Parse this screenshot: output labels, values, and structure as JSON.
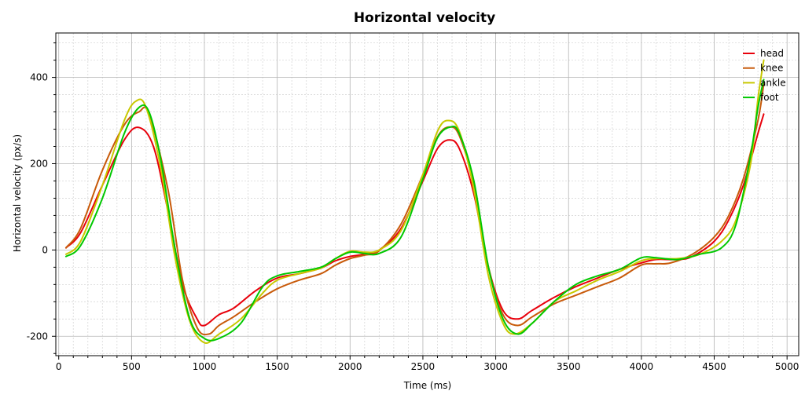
{
  "chart_data": {
    "type": "line",
    "title": "Horizontal velocity",
    "xlabel": "Time (ms)",
    "ylabel": "Horizontal velocity (px/s)",
    "xlim": [
      -20,
      5080
    ],
    "ylim": [
      -245,
      503
    ],
    "x_ticks": [
      0,
      500,
      1000,
      1500,
      2000,
      2500,
      3000,
      3500,
      4000,
      4500,
      5000
    ],
    "x_tick_labels": [
      "0",
      "500",
      "1000",
      "1500",
      "2000",
      "2500",
      "3000",
      "3500",
      "4000",
      "4500",
      "5000"
    ],
    "y_ticks": [
      -200,
      0,
      200,
      400
    ],
    "y_tick_labels": [
      "-200",
      "0",
      "200",
      "400"
    ],
    "grid": true,
    "legend_position": "top-right",
    "series": [
      {
        "name": "head",
        "color": "#e8000b",
        "points": [
          [
            50,
            5
          ],
          [
            150,
            40
          ],
          [
            300,
            150
          ],
          [
            450,
            255
          ],
          [
            550,
            284
          ],
          [
            650,
            240
          ],
          [
            750,
            90
          ],
          [
            850,
            -80
          ],
          [
            950,
            -160
          ],
          [
            1000,
            -175
          ],
          [
            1100,
            -150
          ],
          [
            1200,
            -135
          ],
          [
            1350,
            -95
          ],
          [
            1500,
            -65
          ],
          [
            1650,
            -55
          ],
          [
            1800,
            -42
          ],
          [
            1900,
            -25
          ],
          [
            2000,
            -15
          ],
          [
            2100,
            -10
          ],
          [
            2200,
            0
          ],
          [
            2350,
            50
          ],
          [
            2500,
            160
          ],
          [
            2600,
            235
          ],
          [
            2680,
            255
          ],
          [
            2750,
            235
          ],
          [
            2850,
            130
          ],
          [
            2950,
            -40
          ],
          [
            3050,
            -140
          ],
          [
            3150,
            -160
          ],
          [
            3250,
            -140
          ],
          [
            3400,
            -110
          ],
          [
            3550,
            -85
          ],
          [
            3700,
            -65
          ],
          [
            3850,
            -45
          ],
          [
            4000,
            -30
          ],
          [
            4100,
            -22
          ],
          [
            4250,
            -22
          ],
          [
            4350,
            -15
          ],
          [
            4500,
            20
          ],
          [
            4600,
            70
          ],
          [
            4700,
            150
          ],
          [
            4800,
            270
          ],
          [
            4840,
            315
          ]
        ]
      },
      {
        "name": "knee",
        "color": "#c85a0a",
        "points": [
          [
            50,
            5
          ],
          [
            150,
            50
          ],
          [
            300,
            185
          ],
          [
            450,
            290
          ],
          [
            550,
            320
          ],
          [
            620,
            315
          ],
          [
            750,
            140
          ],
          [
            850,
            -70
          ],
          [
            950,
            -180
          ],
          [
            1030,
            -195
          ],
          [
            1100,
            -175
          ],
          [
            1200,
            -155
          ],
          [
            1350,
            -120
          ],
          [
            1500,
            -90
          ],
          [
            1650,
            -70
          ],
          [
            1800,
            -55
          ],
          [
            1900,
            -35
          ],
          [
            2000,
            -20
          ],
          [
            2100,
            -12
          ],
          [
            2200,
            -2
          ],
          [
            2350,
            60
          ],
          [
            2500,
            175
          ],
          [
            2600,
            262
          ],
          [
            2680,
            285
          ],
          [
            2750,
            265
          ],
          [
            2850,
            150
          ],
          [
            2950,
            -40
          ],
          [
            3050,
            -150
          ],
          [
            3150,
            -175
          ],
          [
            3250,
            -155
          ],
          [
            3400,
            -125
          ],
          [
            3550,
            -105
          ],
          [
            3700,
            -85
          ],
          [
            3850,
            -65
          ],
          [
            4000,
            -35
          ],
          [
            4100,
            -32
          ],
          [
            4200,
            -30
          ],
          [
            4350,
            -10
          ],
          [
            4500,
            30
          ],
          [
            4600,
            80
          ],
          [
            4700,
            165
          ],
          [
            4800,
            300
          ],
          [
            4840,
            385
          ]
        ]
      },
      {
        "name": "ankle",
        "color": "#c8c800",
        "points": [
          [
            50,
            -10
          ],
          [
            150,
            20
          ],
          [
            300,
            150
          ],
          [
            450,
            300
          ],
          [
            530,
            345
          ],
          [
            600,
            330
          ],
          [
            700,
            190
          ],
          [
            800,
            -20
          ],
          [
            900,
            -165
          ],
          [
            1000,
            -215
          ],
          [
            1100,
            -195
          ],
          [
            1250,
            -160
          ],
          [
            1400,
            -100
          ],
          [
            1500,
            -70
          ],
          [
            1650,
            -55
          ],
          [
            1800,
            -42
          ],
          [
            1900,
            -20
          ],
          [
            2000,
            -3
          ],
          [
            2100,
            -5
          ],
          [
            2200,
            0
          ],
          [
            2350,
            45
          ],
          [
            2500,
            175
          ],
          [
            2600,
            275
          ],
          [
            2670,
            300
          ],
          [
            2750,
            275
          ],
          [
            2850,
            140
          ],
          [
            2950,
            -60
          ],
          [
            3050,
            -170
          ],
          [
            3130,
            -195
          ],
          [
            3250,
            -170
          ],
          [
            3400,
            -120
          ],
          [
            3550,
            -95
          ],
          [
            3700,
            -70
          ],
          [
            3850,
            -50
          ],
          [
            4000,
            -25
          ],
          [
            4100,
            -20
          ],
          [
            4250,
            -20
          ],
          [
            4400,
            -10
          ],
          [
            4550,
            20
          ],
          [
            4650,
            70
          ],
          [
            4750,
            200
          ],
          [
            4800,
            350
          ],
          [
            4840,
            440
          ]
        ]
      },
      {
        "name": "foot",
        "color": "#00c800",
        "points": [
          [
            50,
            -15
          ],
          [
            150,
            10
          ],
          [
            300,
            120
          ],
          [
            450,
            270
          ],
          [
            550,
            330
          ],
          [
            620,
            320
          ],
          [
            700,
            210
          ],
          [
            800,
            0
          ],
          [
            900,
            -160
          ],
          [
            1000,
            -205
          ],
          [
            1100,
            -205
          ],
          [
            1250,
            -170
          ],
          [
            1400,
            -85
          ],
          [
            1500,
            -60
          ],
          [
            1650,
            -50
          ],
          [
            1800,
            -40
          ],
          [
            1900,
            -20
          ],
          [
            2000,
            -5
          ],
          [
            2100,
            -8
          ],
          [
            2200,
            -8
          ],
          [
            2350,
            30
          ],
          [
            2500,
            165
          ],
          [
            2600,
            260
          ],
          [
            2690,
            285
          ],
          [
            2750,
            270
          ],
          [
            2850,
            160
          ],
          [
            2950,
            -40
          ],
          [
            3050,
            -160
          ],
          [
            3150,
            -195
          ],
          [
            3250,
            -170
          ],
          [
            3400,
            -120
          ],
          [
            3550,
            -80
          ],
          [
            3700,
            -60
          ],
          [
            3850,
            -45
          ],
          [
            4000,
            -18
          ],
          [
            4100,
            -18
          ],
          [
            4250,
            -22
          ],
          [
            4400,
            -10
          ],
          [
            4550,
            5
          ],
          [
            4650,
            60
          ],
          [
            4750,
            220
          ],
          [
            4800,
            330
          ],
          [
            4840,
            395
          ]
        ]
      }
    ]
  }
}
